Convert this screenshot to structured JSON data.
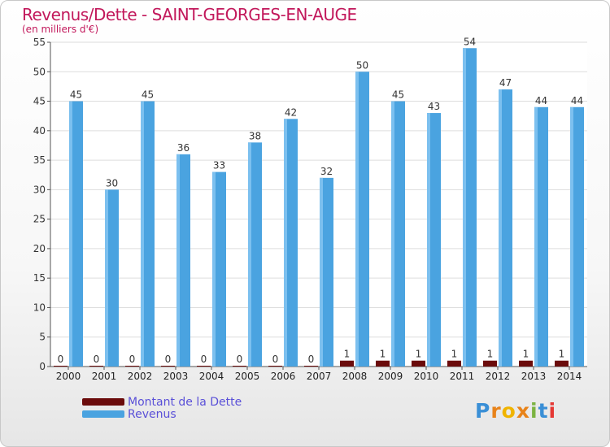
{
  "header": {
    "title": "Revenus/Dette - SAINT-GEORGES-EN-AUGE",
    "subtitle": "(en milliers d'€)"
  },
  "logo": {
    "text": "Proxiti"
  },
  "colors": {
    "debt": "#6b0b0b",
    "revenue": "#4aa3e0",
    "title": "#c2185b",
    "legend_text": "#5a50d8"
  },
  "chart_data": {
    "type": "bar",
    "title": "Revenus/Dette - SAINT-GEORGES-EN-AUGE",
    "subtitle": "(en milliers d'€)",
    "categories": [
      "2000",
      "2001",
      "2002",
      "2003",
      "2004",
      "2005",
      "2006",
      "2007",
      "2008",
      "2009",
      "2010",
      "2011",
      "2012",
      "2013",
      "2014"
    ],
    "series": [
      {
        "name": "Montant de la Dette",
        "values": [
          0,
          0,
          0,
          0,
          0,
          0,
          0,
          0,
          1,
          1,
          1,
          1,
          1,
          1,
          1
        ]
      },
      {
        "name": "Revenus",
        "values": [
          45,
          30,
          45,
          36,
          33,
          38,
          42,
          32,
          50,
          45,
          43,
          54,
          47,
          44,
          44
        ]
      }
    ],
    "ylim": [
      0,
      55
    ],
    "yticks": [
      0,
      5,
      10,
      15,
      20,
      25,
      30,
      35,
      40,
      45,
      50,
      55
    ],
    "grid": true,
    "legend": "bottom-left"
  }
}
